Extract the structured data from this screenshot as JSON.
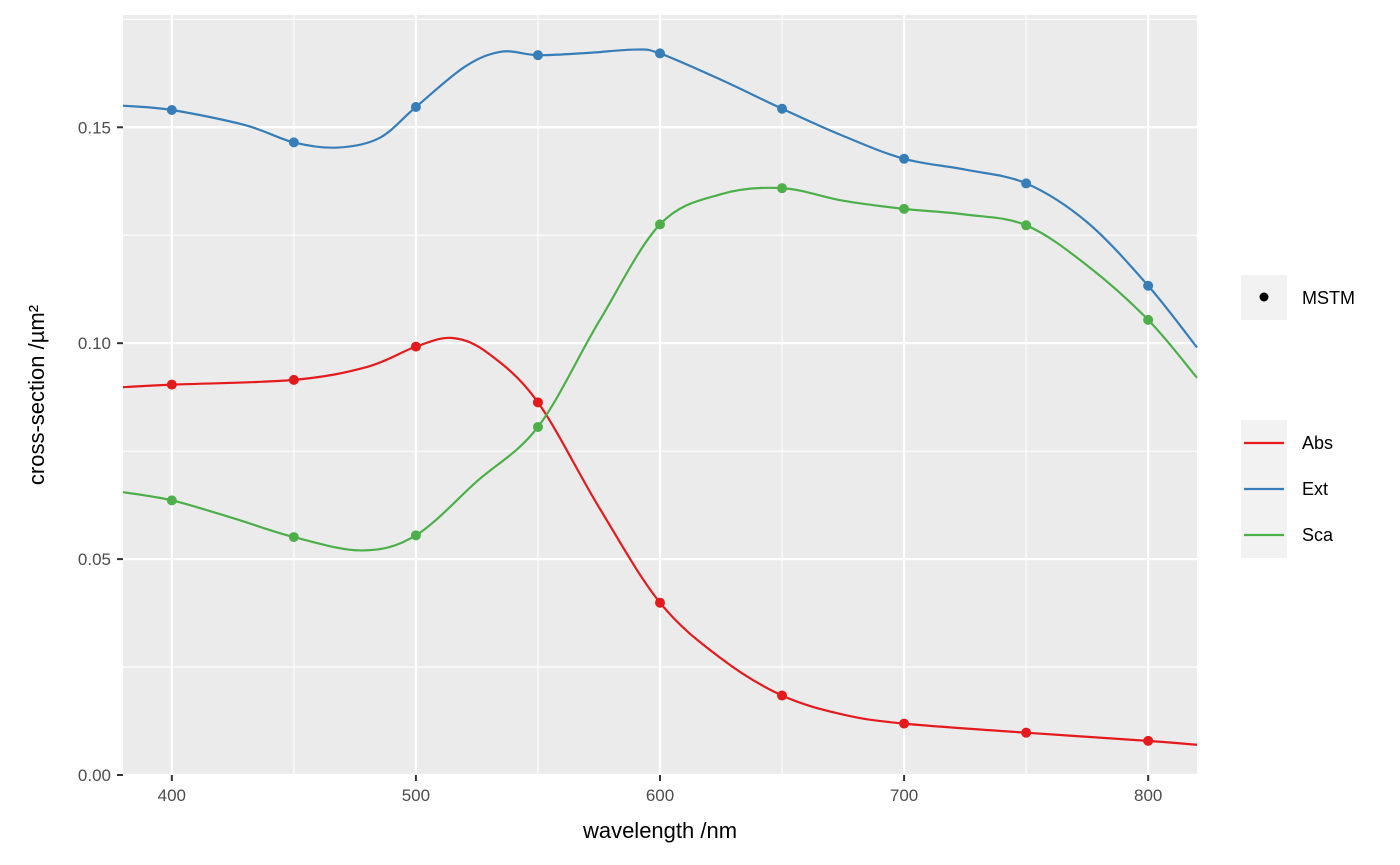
{
  "chart_data": {
    "type": "line",
    "xlabel": "wavelength /nm",
    "ylabel": "cross-section /µm²",
    "xlim": [
      380,
      820
    ],
    "ylim": [
      0,
      0.176
    ],
    "x_ticks": [
      400,
      500,
      600,
      700,
      800
    ],
    "y_ticks": [
      0.0,
      0.05,
      0.1,
      0.15
    ],
    "y_tick_labels": [
      "0.00",
      "0.05",
      "0.10",
      "0.15"
    ],
    "grid": true,
    "legend_position": "right",
    "points_legend": {
      "label": "MSTM",
      "color": "#000000"
    },
    "x": [
      400,
      450,
      500,
      550,
      600,
      650,
      700,
      750,
      800
    ],
    "series": [
      {
        "name": "Abs",
        "color": "#E41A1C",
        "points": [
          0.0904,
          0.0915,
          0.0992,
          0.0863,
          0.0399,
          0.0184,
          0.0119,
          0.0098,
          0.0079
        ],
        "curve": [
          [
            380,
            0.0898
          ],
          [
            400,
            0.0904
          ],
          [
            450,
            0.0915
          ],
          [
            480,
            0.0945
          ],
          [
            500,
            0.0992
          ],
          [
            515,
            0.1012
          ],
          [
            530,
            0.0975
          ],
          [
            550,
            0.0863
          ],
          [
            575,
            0.062
          ],
          [
            600,
            0.0399
          ],
          [
            625,
            0.027
          ],
          [
            650,
            0.0184
          ],
          [
            675,
            0.014
          ],
          [
            700,
            0.0119
          ],
          [
            750,
            0.0098
          ],
          [
            800,
            0.0079
          ],
          [
            820,
            0.007
          ]
        ]
      },
      {
        "name": "Ext",
        "color": "#377EB8",
        "points": [
          0.154,
          0.1465,
          0.1547,
          0.1667,
          0.1671,
          0.1543,
          0.1427,
          0.137,
          0.1133
        ],
        "curve": [
          [
            380,
            0.155
          ],
          [
            400,
            0.154
          ],
          [
            430,
            0.1505
          ],
          [
            450,
            0.1465
          ],
          [
            468,
            0.1453
          ],
          [
            485,
            0.1475
          ],
          [
            500,
            0.1547
          ],
          [
            520,
            0.164
          ],
          [
            535,
            0.1675
          ],
          [
            550,
            0.1667
          ],
          [
            570,
            0.1672
          ],
          [
            590,
            0.168
          ],
          [
            600,
            0.1671
          ],
          [
            625,
            0.161
          ],
          [
            650,
            0.1543
          ],
          [
            675,
            0.148
          ],
          [
            700,
            0.1427
          ],
          [
            725,
            0.1402
          ],
          [
            750,
            0.137
          ],
          [
            775,
            0.128
          ],
          [
            800,
            0.1133
          ],
          [
            820,
            0.099
          ]
        ]
      },
      {
        "name": "Sca",
        "color": "#4DAF4A",
        "points": [
          0.0636,
          0.0551,
          0.0555,
          0.0806,
          0.1275,
          0.1359,
          0.1311,
          0.1273,
          0.1054
        ],
        "curve": [
          [
            380,
            0.0655
          ],
          [
            400,
            0.0636
          ],
          [
            425,
            0.0595
          ],
          [
            450,
            0.0551
          ],
          [
            478,
            0.052
          ],
          [
            500,
            0.0555
          ],
          [
            525,
            0.068
          ],
          [
            550,
            0.0806
          ],
          [
            575,
            0.105
          ],
          [
            600,
            0.1275
          ],
          [
            625,
            0.1345
          ],
          [
            650,
            0.1359
          ],
          [
            675,
            0.133
          ],
          [
            700,
            0.1311
          ],
          [
            725,
            0.1298
          ],
          [
            750,
            0.1273
          ],
          [
            775,
            0.118
          ],
          [
            800,
            0.1054
          ],
          [
            820,
            0.092
          ]
        ]
      }
    ]
  }
}
